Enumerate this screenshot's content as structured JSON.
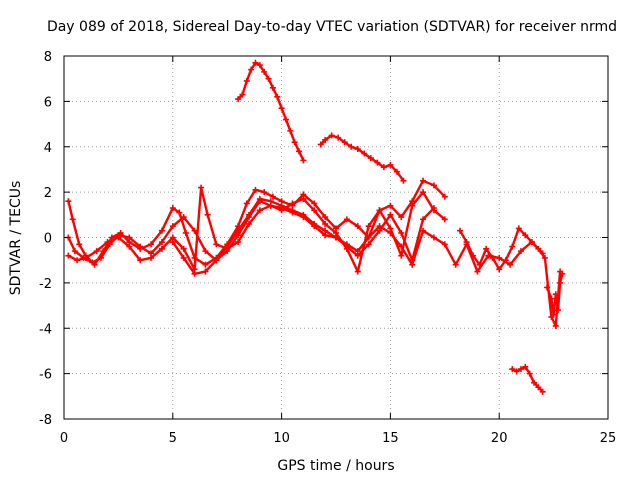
{
  "chart_data": {
    "type": "scatter",
    "title": "Day 089 of 2018, Sidereal Day-to-day VTEC variation (SDTVAR) for receiver nrmd",
    "xlabel": "GPS time / hours",
    "ylabel": "SDTVAR / TECUs",
    "xlim": [
      0,
      25
    ],
    "ylim": [
      -8,
      8
    ],
    "xticks": [
      0,
      5,
      10,
      15,
      20,
      25
    ],
    "yticks": [
      -8,
      -6,
      -4,
      -2,
      0,
      2,
      4,
      6,
      8
    ],
    "xtick_labels": [
      "0",
      "5",
      "10",
      "15",
      "20",
      "25"
    ],
    "ytick_labels": [
      "-8",
      "-6",
      "-4",
      "-2",
      "0",
      "2",
      "4",
      "6",
      "8"
    ],
    "grid": true,
    "marker": "+",
    "color": "#ff0000",
    "series": [
      {
        "name": "track-1",
        "x": [
          0.2,
          0.4,
          0.7,
          1.0,
          1.4,
          1.8,
          2.2,
          2.6,
          3.0,
          3.5,
          4.0,
          4.5,
          5.0,
          5.3,
          5.6,
          6.0,
          6.5,
          7.0,
          7.5,
          8.0,
          8.4,
          8.8,
          9.2,
          9.6,
          10.0,
          10.5,
          11.0,
          11.5,
          12.0,
          12.5,
          13.0,
          13.5,
          14.0,
          14.5,
          15.0,
          15.5,
          16.0,
          16.5,
          17.0,
          17.5
        ],
        "y": [
          1.6,
          0.8,
          -0.3,
          -0.8,
          -1.2,
          -0.6,
          0.0,
          0.2,
          -0.2,
          -0.5,
          -0.3,
          0.3,
          1.3,
          1.1,
          0.2,
          -0.9,
          -1.2,
          -0.9,
          -0.3,
          0.5,
          1.5,
          2.1,
          2.0,
          1.8,
          1.6,
          1.4,
          1.9,
          1.5,
          0.9,
          0.4,
          0.8,
          0.5,
          0.0,
          1.2,
          1.4,
          0.9,
          1.6,
          2.5,
          2.3,
          1.8
        ]
      },
      {
        "name": "track-2",
        "x": [
          0.2,
          0.5,
          0.9,
          1.3,
          1.7,
          2.1,
          2.5,
          3.0,
          3.5,
          4.0,
          4.5,
          5.0,
          5.5,
          6.0,
          6.5,
          7.0,
          7.5,
          8.0,
          8.5,
          9.0,
          9.5,
          10.0,
          10.5,
          11.0,
          11.5,
          12.0,
          12.5,
          13.0,
          13.5,
          14.0,
          14.5,
          15.0,
          15.5,
          16.0,
          16.5,
          17.0,
          17.5
        ],
        "y": [
          0.0,
          -0.6,
          -0.9,
          -1.1,
          -0.9,
          -0.3,
          0.1,
          0.0,
          -0.4,
          -0.7,
          -0.2,
          0.5,
          0.9,
          0.3,
          -0.6,
          -1.0,
          -0.6,
          0.1,
          0.9,
          1.6,
          1.4,
          1.2,
          1.5,
          1.7,
          1.2,
          0.6,
          0.2,
          -0.5,
          -1.5,
          0.5,
          1.2,
          0.4,
          -0.8,
          1.4,
          2.0,
          1.2,
          0.8
        ]
      },
      {
        "name": "track-3",
        "x": [
          0.2,
          0.6,
          1.0,
          1.5,
          2.0,
          2.5,
          3.0,
          3.5,
          4.0,
          4.5,
          5.0,
          5.5,
          6.0,
          6.3,
          6.6,
          7.0,
          7.5,
          8.0,
          8.5,
          9.0,
          9.5,
          10.0,
          10.5,
          11.0,
          11.5,
          12.0,
          12.5,
          13.0,
          13.5,
          14.0,
          14.5,
          15.0,
          15.5,
          16.0,
          16.5,
          17.0
        ],
        "y": [
          -0.8,
          -1.0,
          -0.9,
          -0.6,
          -0.2,
          0.0,
          -0.4,
          -1.0,
          -0.9,
          -0.5,
          0.0,
          -0.5,
          -1.4,
          2.2,
          1.0,
          -0.3,
          -0.5,
          -0.2,
          0.6,
          1.2,
          1.4,
          1.3,
          1.1,
          0.9,
          0.5,
          0.1,
          0.0,
          -0.4,
          -0.8,
          -0.3,
          0.3,
          1.0,
          0.2,
          -1.0,
          0.8,
          1.3
        ]
      },
      {
        "name": "track-4",
        "x": [
          5.0,
          5.5,
          6.0,
          6.5,
          7.0,
          7.5,
          8.0,
          8.5,
          9.0,
          9.5,
          10.0,
          10.5,
          11.0,
          11.5,
          12.0,
          12.5,
          13.0,
          13.5,
          14.0,
          14.5,
          15.0,
          15.5,
          16.0,
          16.5,
          17.0,
          17.5,
          18.0,
          18.5,
          19.0,
          19.5,
          20.0,
          20.5,
          21.0,
          21.5,
          22.0
        ],
        "y": [
          -0.2,
          -0.9,
          -1.6,
          -1.5,
          -1.0,
          -0.4,
          0.3,
          1.0,
          1.7,
          1.6,
          1.4,
          1.2,
          1.0,
          0.6,
          0.3,
          0.0,
          -0.3,
          -0.6,
          0.0,
          0.5,
          0.2,
          -0.4,
          -1.2,
          0.3,
          0.0,
          -0.3,
          -1.2,
          -0.3,
          -1.5,
          -0.8,
          -0.9,
          -1.2,
          -0.6,
          -0.2,
          -0.7
        ]
      },
      {
        "name": "track-5",
        "x": [
          18.2,
          18.5,
          18.8,
          19.1,
          19.4,
          19.7,
          20.0,
          20.3,
          20.6,
          20.9,
          21.2,
          21.5,
          21.8,
          22.1,
          22.4,
          22.6,
          22.8
        ],
        "y": [
          0.3,
          -0.2,
          -0.8,
          -1.2,
          -0.5,
          -0.9,
          -1.4,
          -1.0,
          -0.4,
          0.4,
          0.1,
          -0.2,
          -0.5,
          -0.9,
          -3.5,
          -3.9,
          -1.5
        ]
      },
      {
        "name": "track-6",
        "x": [
          22.2,
          22.4,
          22.5,
          22.6,
          22.7,
          22.8,
          22.9
        ],
        "y": [
          -2.2,
          -2.7,
          -3.4,
          -2.5,
          -3.2,
          -2.0,
          -1.6
        ]
      },
      {
        "name": "track-7",
        "x": [
          8.0,
          8.2,
          8.4,
          8.6,
          8.8,
          9.0,
          9.2,
          9.4,
          9.6,
          9.8,
          10.0,
          10.2,
          10.4,
          10.6,
          10.8,
          11.0
        ],
        "y": [
          6.1,
          6.3,
          6.9,
          7.4,
          7.7,
          7.6,
          7.3,
          7.0,
          6.6,
          6.2,
          5.7,
          5.2,
          4.7,
          4.2,
          3.8,
          3.4
        ]
      },
      {
        "name": "track-8",
        "x": [
          11.8,
          12.0,
          12.3,
          12.6,
          12.9,
          13.2,
          13.5,
          13.8,
          14.1,
          14.4,
          14.7,
          15.0,
          15.3,
          15.6
        ],
        "y": [
          4.1,
          4.3,
          4.5,
          4.4,
          4.2,
          4.0,
          3.9,
          3.7,
          3.5,
          3.3,
          3.1,
          3.2,
          2.9,
          2.5
        ]
      },
      {
        "name": "track-9",
        "x": [
          20.6,
          20.8,
          21.0,
          21.2,
          21.4,
          21.6,
          21.8,
          22.0
        ],
        "y": [
          -5.8,
          -5.9,
          -5.8,
          -5.7,
          -6.0,
          -6.4,
          -6.6,
          -6.8
        ]
      }
    ]
  }
}
